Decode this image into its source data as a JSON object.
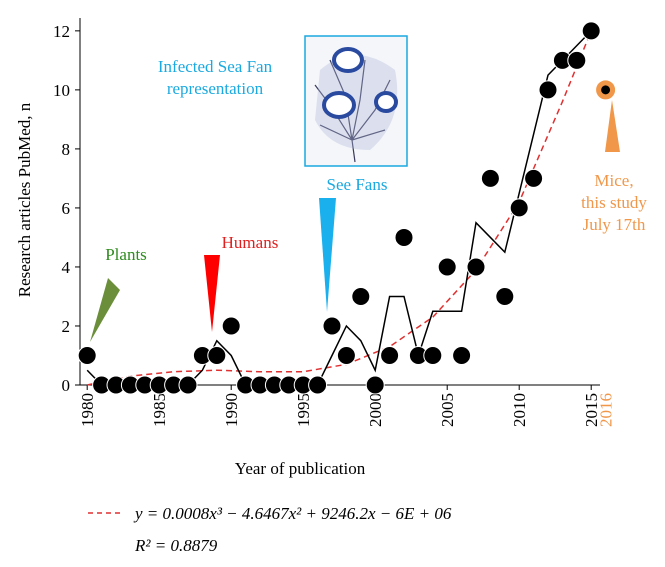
{
  "chart_data": {
    "type": "scatter",
    "x_label": "Year of publication",
    "y_label": "Research articles PubMed, n",
    "xlim": [
      1979.5,
      2017
    ],
    "ylim": [
      0,
      12.3
    ],
    "xticks": [
      1980,
      1985,
      1990,
      1995,
      2000,
      2005,
      2010,
      2015,
      2016
    ],
    "yticks": [
      0,
      2,
      4,
      6,
      8,
      10,
      12
    ],
    "series": [
      {
        "kind": "points",
        "color": "#000000",
        "x": [
          1980,
          1981,
          1982,
          1983,
          1984,
          1985,
          1986,
          1987,
          1988,
          1989,
          1990,
          1991,
          1992,
          1993,
          1994,
          1995,
          1996,
          1997,
          1998,
          1999,
          2000,
          2001,
          2002,
          2003,
          2004,
          2005,
          2006,
          2007,
          2008,
          2009,
          2010,
          2011,
          2012,
          2013,
          2014,
          2015
        ],
        "values": [
          1,
          0,
          0,
          0,
          0,
          0,
          0,
          0,
          1,
          1,
          2,
          0,
          0,
          0,
          0,
          0,
          0,
          2,
          1,
          3,
          0,
          1,
          5,
          1,
          1,
          4,
          1,
          4,
          7,
          3,
          6,
          7,
          10,
          11,
          11,
          12
        ]
      },
      {
        "kind": "line",
        "color": "#000000",
        "x": [
          1980,
          1981,
          1982,
          1983,
          1984,
          1985,
          1986,
          1987,
          1988,
          1989,
          1990,
          1991,
          1992,
          1993,
          1994,
          1995,
          1996,
          1997,
          1998,
          1999,
          2000,
          2001,
          2002,
          2003,
          2004,
          2005,
          2006,
          2007,
          2008,
          2009,
          2010,
          2011,
          2012,
          2013,
          2014,
          2015
        ],
        "values": [
          0.5,
          0,
          0,
          0,
          0,
          0,
          0,
          0,
          0.5,
          1.5,
          1,
          0,
          0,
          0,
          0,
          0,
          0,
          1,
          2,
          1.5,
          0.5,
          3,
          3,
          1,
          2.5,
          2.5,
          2.5,
          5.5,
          5,
          4.5,
          6.5,
          8.5,
          10.5,
          11,
          11.5,
          12
        ]
      },
      {
        "kind": "dashed",
        "color": "#e03030",
        "name": "y = 0.0008x³ − 4.6467x² + 9246.2x − 6E + 06",
        "x": [
          1980,
          1983,
          1986,
          1989,
          1992,
          1995,
          1998,
          2001,
          2004,
          2007,
          2010,
          2013,
          2015
        ],
        "values": [
          0,
          0.3,
          0.45,
          0.5,
          0.45,
          0.45,
          0.7,
          1.3,
          2.3,
          3.9,
          6.2,
          9.6,
          12
        ]
      },
      {
        "kind": "highlight",
        "color": "#f0974a",
        "x": [
          2016
        ],
        "values": [
          10
        ]
      }
    ],
    "r_squared": "R² = 0.8879",
    "annotations": [
      {
        "text": [
          "Plants"
        ],
        "color": "#2e8b1e",
        "arrow_color": "#6b8e3a"
      },
      {
        "text": [
          "Humans"
        ],
        "color": "#e02020",
        "arrow_color": "#ff0000"
      },
      {
        "text": [
          "See Fans"
        ],
        "color": "#1aa9e0",
        "arrow_color": "#1ab0ee"
      },
      {
        "text": [
          "Infected Sea Fan",
          "representation"
        ],
        "color": "#1aa9e0"
      },
      {
        "text": [
          "Mice,",
          "this study",
          "July 17th"
        ],
        "color": "#f0974a",
        "arrow_color": "#f0974a"
      }
    ]
  }
}
